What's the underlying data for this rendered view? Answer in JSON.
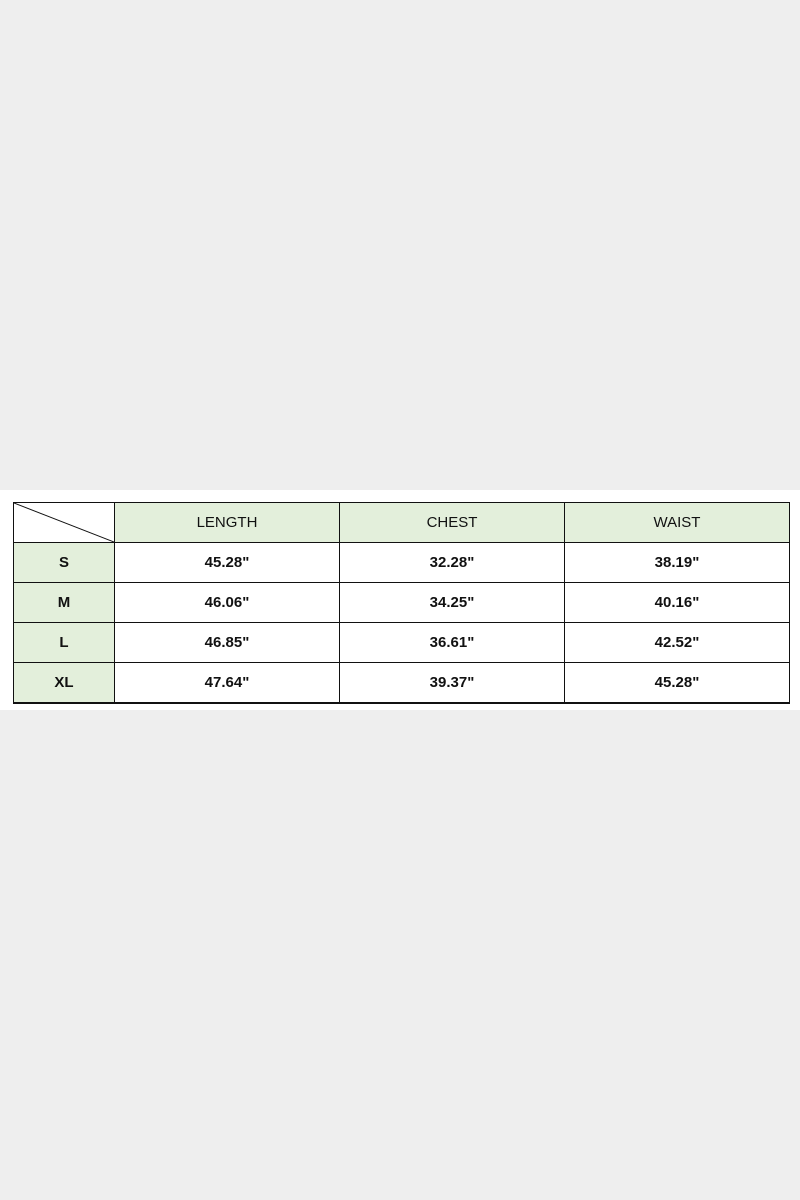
{
  "table": {
    "headers": [
      "LENGTH",
      "CHEST",
      "WAIST"
    ],
    "rows": [
      {
        "size": "S",
        "values": [
          "45.28\"",
          "32.28\"",
          "38.19\""
        ]
      },
      {
        "size": "M",
        "values": [
          "46.06\"",
          "34.25\"",
          "40.16\""
        ]
      },
      {
        "size": "L",
        "values": [
          "46.85\"",
          "36.61\"",
          "42.52\""
        ]
      },
      {
        "size": "XL",
        "values": [
          "47.64\"",
          "39.37\"",
          "45.28\""
        ]
      }
    ],
    "header_color": "#e3efdb"
  }
}
